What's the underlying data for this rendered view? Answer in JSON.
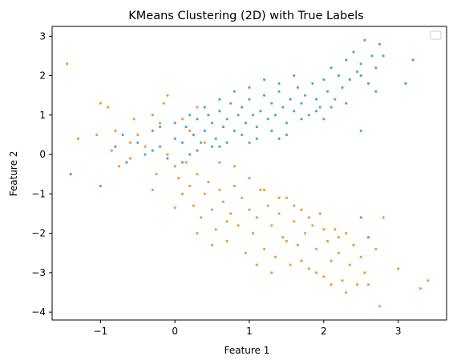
{
  "chart_data": {
    "type": "scatter",
    "title": "KMeans Clustering (2D) with True Labels",
    "xlabel": "Feature 1",
    "ylabel": "Feature 2",
    "xlim": [
      -1.65,
      3.65
    ],
    "ylim": [
      -4.2,
      3.25
    ],
    "xticks": [
      -1,
      0,
      1,
      2,
      3
    ],
    "yticks": [
      -4,
      -3,
      -2,
      -1,
      0,
      1,
      2,
      3
    ],
    "grid": false,
    "legend": {
      "position": "top-right",
      "entries": []
    },
    "colors": {
      "cluster_a": "#4bacc6",
      "cluster_b": "#f79a2e"
    },
    "series": [
      {
        "color": "#4bacc6",
        "points": [
          [
            -1.4,
            -0.5
          ],
          [
            -1.0,
            -0.8
          ],
          [
            -0.8,
            0.2
          ],
          [
            -0.7,
            0.5
          ],
          [
            -0.65,
            -0.2
          ],
          [
            -0.5,
            0.3
          ],
          [
            -0.4,
            0.0
          ],
          [
            -0.3,
            0.6
          ],
          [
            -0.2,
            0.2
          ],
          [
            -0.1,
            -0.1
          ],
          [
            0.0,
            0.4
          ],
          [
            0.1,
            0.3
          ],
          [
            0.15,
            0.7
          ],
          [
            0.2,
            0.0
          ],
          [
            0.25,
            0.5
          ],
          [
            0.3,
            0.9
          ],
          [
            0.35,
            0.3
          ],
          [
            0.4,
            0.6
          ],
          [
            0.45,
            1.0
          ],
          [
            0.5,
            0.8
          ],
          [
            0.55,
            0.4
          ],
          [
            0.6,
            1.1
          ],
          [
            0.65,
            0.7
          ],
          [
            0.7,
            0.9
          ],
          [
            0.75,
            1.3
          ],
          [
            0.8,
            0.6
          ],
          [
            0.85,
            1.0
          ],
          [
            0.9,
            1.2
          ],
          [
            0.95,
            0.8
          ],
          [
            1.0,
            1.4
          ],
          [
            1.05,
            1.0
          ],
          [
            1.1,
            0.7
          ],
          [
            1.15,
            1.1
          ],
          [
            1.2,
            1.5
          ],
          [
            1.25,
            0.9
          ],
          [
            1.3,
            1.3
          ],
          [
            1.35,
            1.0
          ],
          [
            1.4,
            1.6
          ],
          [
            1.45,
            1.2
          ],
          [
            1.5,
            0.8
          ],
          [
            1.55,
            1.4
          ],
          [
            1.6,
            1.1
          ],
          [
            1.65,
            1.7
          ],
          [
            1.7,
            1.3
          ],
          [
            1.75,
            1.5
          ],
          [
            1.8,
            1.0
          ],
          [
            1.85,
            1.8
          ],
          [
            1.9,
            1.4
          ],
          [
            1.95,
            1.2
          ],
          [
            2.0,
            1.9
          ],
          [
            2.05,
            1.6
          ],
          [
            2.1,
            2.2
          ],
          [
            2.15,
            1.4
          ],
          [
            2.2,
            2.0
          ],
          [
            2.25,
            1.7
          ],
          [
            2.3,
            2.4
          ],
          [
            2.35,
            1.9
          ],
          [
            2.4,
            2.6
          ],
          [
            2.45,
            2.1
          ],
          [
            2.5,
            0.6
          ],
          [
            2.5,
            2.3
          ],
          [
            2.55,
            2.9
          ],
          [
            2.6,
            1.8
          ],
          [
            2.65,
            2.5
          ],
          [
            2.7,
            2.2
          ],
          [
            2.75,
            2.8
          ],
          [
            2.8,
            2.5
          ],
          [
            3.1,
            1.8
          ],
          [
            3.2,
            2.4
          ],
          [
            1.6,
            2.0
          ],
          [
            1.4,
            1.8
          ],
          [
            1.2,
            1.9
          ],
          [
            1.0,
            1.7
          ],
          [
            0.8,
            1.6
          ],
          [
            0.6,
            1.4
          ],
          [
            0.4,
            1.2
          ],
          [
            0.2,
            1.0
          ],
          [
            0.0,
            0.8
          ],
          [
            -0.2,
            0.7
          ],
          [
            0.5,
            0.2
          ],
          [
            0.7,
            0.3
          ],
          [
            0.9,
            0.5
          ],
          [
            1.1,
            0.4
          ],
          [
            1.3,
            0.6
          ],
          [
            1.5,
            0.5
          ],
          [
            1.7,
            0.9
          ],
          [
            1.9,
            1.1
          ],
          [
            2.1,
            1.2
          ],
          [
            0.3,
            0.1
          ],
          [
            0.1,
            -0.2
          ],
          [
            -0.3,
            0.1
          ],
          [
            0.6,
            0.2
          ],
          [
            1.0,
            0.3
          ],
          [
            1.4,
            0.4
          ],
          [
            2.0,
            0.9
          ],
          [
            2.3,
            1.3
          ],
          [
            2.5,
            -1.6
          ],
          [
            2.6,
            -2.1
          ],
          [
            2.5,
            2.0
          ],
          [
            2.7,
            1.6
          ]
        ]
      },
      {
        "color": "#f79a2e",
        "points": [
          [
            -1.45,
            2.3
          ],
          [
            -1.3,
            0.4
          ],
          [
            -1.05,
            0.5
          ],
          [
            -1.0,
            1.3
          ],
          [
            -0.9,
            1.2
          ],
          [
            -0.85,
            0.1
          ],
          [
            -0.75,
            -0.3
          ],
          [
            -0.6,
            0.3
          ],
          [
            -0.55,
            0.9
          ],
          [
            -0.5,
            0.5
          ],
          [
            -0.4,
            0.2
          ],
          [
            -0.3,
            1.0
          ],
          [
            -0.25,
            -0.5
          ],
          [
            -0.2,
            0.8
          ],
          [
            -0.15,
            1.3
          ],
          [
            -0.1,
            0.0
          ],
          [
            0.0,
            -0.3
          ],
          [
            0.05,
            -0.6
          ],
          [
            0.1,
            -1.0
          ],
          [
            0.15,
            -0.2
          ],
          [
            0.2,
            -0.8
          ],
          [
            0.25,
            -1.3
          ],
          [
            0.3,
            -0.5
          ],
          [
            0.35,
            -1.6
          ],
          [
            0.4,
            -1.0
          ],
          [
            0.45,
            -0.7
          ],
          [
            0.5,
            -1.4
          ],
          [
            0.55,
            -1.9
          ],
          [
            0.6,
            -0.9
          ],
          [
            0.65,
            -1.2
          ],
          [
            0.7,
            -2.2
          ],
          [
            0.75,
            -1.5
          ],
          [
            0.8,
            -0.8
          ],
          [
            0.85,
            -1.8
          ],
          [
            0.9,
            -1.1
          ],
          [
            0.95,
            -2.5
          ],
          [
            1.0,
            -1.4
          ],
          [
            1.05,
            -2.0
          ],
          [
            1.1,
            -1.6
          ],
          [
            1.15,
            -0.9
          ],
          [
            1.2,
            -2.4
          ],
          [
            1.25,
            -1.3
          ],
          [
            1.3,
            -1.8
          ],
          [
            1.35,
            -2.6
          ],
          [
            1.4,
            -1.5
          ],
          [
            1.45,
            -2.1
          ],
          [
            1.5,
            -1.1
          ],
          [
            1.55,
            -2.8
          ],
          [
            1.6,
            -1.7
          ],
          [
            1.65,
            -2.3
          ],
          [
            1.7,
            -1.4
          ],
          [
            1.75,
            -2.0
          ],
          [
            1.8,
            -2.9
          ],
          [
            1.85,
            -1.8
          ],
          [
            1.9,
            -2.4
          ],
          [
            1.95,
            -1.5
          ],
          [
            2.0,
            -3.1
          ],
          [
            2.05,
            -2.2
          ],
          [
            2.1,
            -2.7
          ],
          [
            2.15,
            -1.9
          ],
          [
            2.2,
            -2.5
          ],
          [
            2.25,
            -3.2
          ],
          [
            2.3,
            -2.0
          ],
          [
            2.35,
            -2.8
          ],
          [
            2.4,
            -2.3
          ],
          [
            2.45,
            -3.3
          ],
          [
            2.5,
            -2.6
          ],
          [
            2.55,
            -3.0
          ],
          [
            2.6,
            -3.3
          ],
          [
            2.7,
            -2.4
          ],
          [
            2.75,
            -3.85
          ],
          [
            2.8,
            -1.6
          ],
          [
            3.0,
            -2.9
          ],
          [
            3.3,
            -3.4
          ],
          [
            3.4,
            -3.2
          ],
          [
            0.0,
            -1.35
          ],
          [
            -0.3,
            -0.9
          ],
          [
            0.2,
            0.6
          ],
          [
            0.4,
            0.3
          ],
          [
            0.6,
            -0.2
          ],
          [
            0.8,
            -0.3
          ],
          [
            1.0,
            -0.6
          ],
          [
            1.2,
            -0.9
          ],
          [
            1.4,
            -1.1
          ],
          [
            1.6,
            -1.3
          ],
          [
            1.8,
            -1.6
          ],
          [
            2.0,
            -1.9
          ],
          [
            2.2,
            -2.1
          ],
          [
            0.3,
            -2.0
          ],
          [
            0.5,
            -2.3
          ],
          [
            0.7,
            -1.7
          ],
          [
            1.1,
            -2.8
          ],
          [
            1.3,
            -3.0
          ],
          [
            1.5,
            -2.2
          ],
          [
            1.7,
            -2.7
          ],
          [
            1.9,
            -3.0
          ],
          [
            2.1,
            -3.3
          ],
          [
            2.3,
            -3.5
          ],
          [
            -0.6,
            -0.1
          ],
          [
            -0.8,
            0.6
          ],
          [
            0.1,
            0.9
          ],
          [
            0.3,
            1.2
          ],
          [
            -0.1,
            1.5
          ]
        ]
      }
    ]
  }
}
